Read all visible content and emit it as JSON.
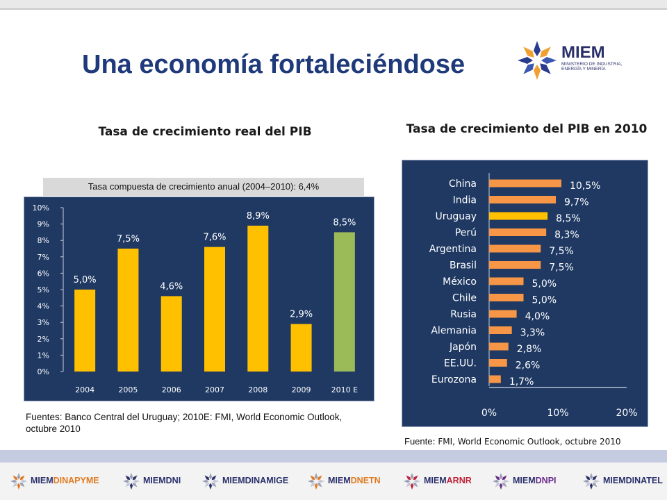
{
  "slide": {
    "title": "Una economía fortaleciéndose"
  },
  "logo": {
    "name": "MIEM",
    "subtitle_line1": "MINISTERIO DE INDUSTRIA,",
    "subtitle_line2": "ENERGÍA Y MINERÍA"
  },
  "left": {
    "cagr_note": "Tasa compuesta de crecimiento anual (2004–2010): 6,4%",
    "source": "Fuentes: Banco Central del Uruguay; 2010E: FMI, World Economic Outlook, octubre 2010"
  },
  "right": {
    "source_prefix": "Fuente",
    "source_rest": ": FMI, World Economic Outlook, octubre 2010"
  },
  "footer_logos": [
    {
      "prefix": "MIEM",
      "suffix": "DINAPYME",
      "color": "#e07a1f"
    },
    {
      "prefix": "MIEM",
      "suffix": "DNI",
      "color": "#2a2f6b"
    },
    {
      "prefix": "MIEM",
      "suffix": "DINAMIGE",
      "color": "#2a2f6b"
    },
    {
      "prefix": "MIEM",
      "suffix": "DNETN",
      "color": "#e07a1f"
    },
    {
      "prefix": "MIEM",
      "suffix": "ARNR",
      "color": "#c0223a"
    },
    {
      "prefix": "MIEM",
      "suffix": "DNPI",
      "color": "#6a2a8a"
    },
    {
      "prefix": "MIEM",
      "suffix": "DINATEL",
      "color": "#2a2f6b"
    }
  ],
  "chart_data": [
    {
      "type": "bar",
      "title": "Tasa de crecimiento real del PIB",
      "categories": [
        "2004",
        "2005",
        "2006",
        "2007",
        "2008",
        "2009",
        "2010 E"
      ],
      "values": [
        5.0,
        7.5,
        4.6,
        7.6,
        8.9,
        2.9,
        8.5
      ],
      "data_labels": [
        "5,0%",
        "7,5%",
        "4,6%",
        "7,6%",
        "8,9%",
        "2,9%",
        "8,5%"
      ],
      "bar_colors": [
        "#ffc000",
        "#ffc000",
        "#ffc000",
        "#ffc000",
        "#ffc000",
        "#ffc000",
        "#9bbb59"
      ],
      "yticks": [
        "0%",
        "1%",
        "2%",
        "3%",
        "4%",
        "5%",
        "6%",
        "7%",
        "8%",
        "9%",
        "10%"
      ],
      "ylim": [
        0,
        10
      ],
      "background": "#1f3963"
    },
    {
      "type": "bar",
      "orientation": "horizontal",
      "title": "Tasa de crecimiento del PIB en 2010",
      "categories": [
        "China",
        "India",
        "Uruguay",
        "Perú",
        "Argentina",
        "Brasil",
        "México",
        "Chile",
        "Rusia",
        "Alemania",
        "Japón",
        "EE.UU.",
        "Eurozona"
      ],
      "values": [
        10.5,
        9.7,
        8.5,
        8.3,
        7.5,
        7.5,
        5.0,
        5.0,
        4.0,
        3.3,
        2.8,
        2.6,
        1.7
      ],
      "data_labels": [
        "10,5%",
        "9,7%",
        "8,5%",
        "8,3%",
        "7,5%",
        "7,5%",
        "5,0%",
        "5,0%",
        "4,0%",
        "3,3%",
        "2,8%",
        "2,6%",
        "1,7%"
      ],
      "bar_colors": [
        "#f79646",
        "#f79646",
        "#ffc000",
        "#f79646",
        "#f79646",
        "#f79646",
        "#f79646",
        "#f79646",
        "#f79646",
        "#f79646",
        "#f79646",
        "#f79646",
        "#f79646"
      ],
      "xticks": [
        "0%",
        "10%",
        "20%"
      ],
      "xlim": [
        0,
        20
      ],
      "background": "#1f3963"
    }
  ]
}
